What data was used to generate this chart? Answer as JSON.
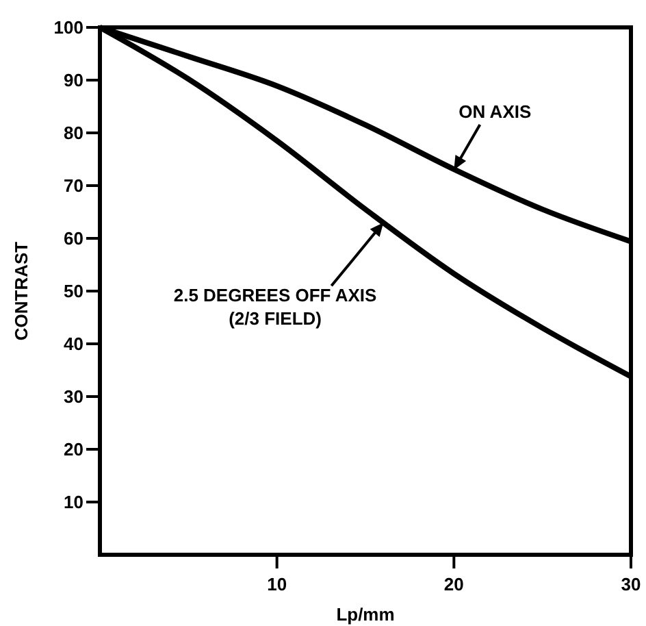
{
  "chart_data": {
    "type": "line",
    "xlabel": "Lp/mm",
    "ylabel": "CONTRAST",
    "xlim": [
      0,
      30
    ],
    "ylim": [
      0,
      100
    ],
    "xticks": [
      10,
      20,
      30
    ],
    "yticks": [
      10,
      20,
      30,
      40,
      50,
      60,
      70,
      80,
      90,
      100
    ],
    "grid": false,
    "marker": "none",
    "line_style": "solid",
    "x": [
      0,
      5,
      10,
      15,
      20,
      25,
      30
    ],
    "series": [
      {
        "color": "#000000",
        "values": [
          100,
          94.5,
          88.9,
          81.5,
          73.1,
          65.5,
          59.4
        ]
      },
      {
        "color": "#000000",
        "values": [
          100,
          90.2,
          78.5,
          65.5,
          53.3,
          43,
          33.8
        ]
      }
    ],
    "annotations": [
      {
        "text": "ON AXIS",
        "x": 20,
        "y": 73
      },
      "2.5 DEGREES OFF AXIS\n(2/3 FIELD)"
    ]
  }
}
